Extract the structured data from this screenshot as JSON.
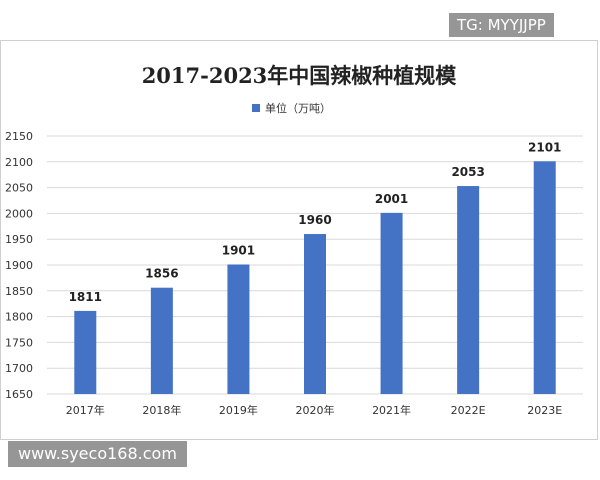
{
  "watermarks": {
    "top": "TG: MYYJJPP",
    "bottom": "www.syeco168.com"
  },
  "colors": {
    "bar": "#4472c4",
    "grid": "#d9d9d9",
    "text": "#333333"
  },
  "chart_data": {
    "type": "bar",
    "title": "2017-2023年中国辣椒种植规模",
    "legend": {
      "label": "单位（万吨）",
      "placement": "top-center"
    },
    "categories": [
      "2017年",
      "2018年",
      "2019年",
      "2020年",
      "2021年",
      "2022E",
      "2023E"
    ],
    "values": [
      1811,
      1856,
      1901,
      1960,
      2001,
      2053,
      2101
    ],
    "yticks": [
      1650,
      1700,
      1750,
      1800,
      1850,
      1900,
      1950,
      2000,
      2050,
      2100,
      2150
    ],
    "ylim": [
      1650,
      2150
    ],
    "grid": true,
    "xlabel": "",
    "ylabel": ""
  }
}
